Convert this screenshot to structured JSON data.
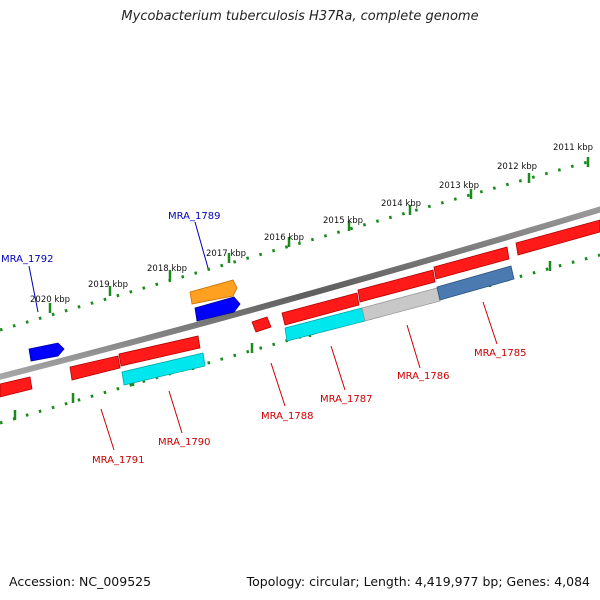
{
  "title": "Mycobacterium tuberculosis H37Ra, complete genome",
  "accession_text": "Accession: NC_009525",
  "summary_text": "Topology: circular; Length: 4,419,977 bp; Genes: 4,084",
  "colors": {
    "backbone": "#7a7a7a",
    "tick": "#1a8a1a",
    "forward_label": "#0000bb",
    "reverse_label": "#cc0000",
    "cds": "#ff0000",
    "cds_alt": "#ffa020",
    "blue_feature": "#0000ff",
    "cyan_feature": "#00e8ee",
    "grey_feature": "#c8c8c8",
    "steel_feature": "#4a7ab0"
  },
  "scale_labels": [
    "2011 kbp",
    "2012 kbp",
    "2013 kbp",
    "2014 kbp",
    "2015 kbp",
    "2016 kbp",
    "2017 kbp",
    "2018 kbp",
    "2019 kbp",
    "2020 kbp"
  ],
  "gene_labels": {
    "forward": [
      "MRA_1789",
      "MRA_1792"
    ],
    "reverse": [
      "MRA_1785",
      "MRA_1786",
      "MRA_1787",
      "MRA_1788",
      "MRA_1790",
      "MRA_1791"
    ]
  }
}
